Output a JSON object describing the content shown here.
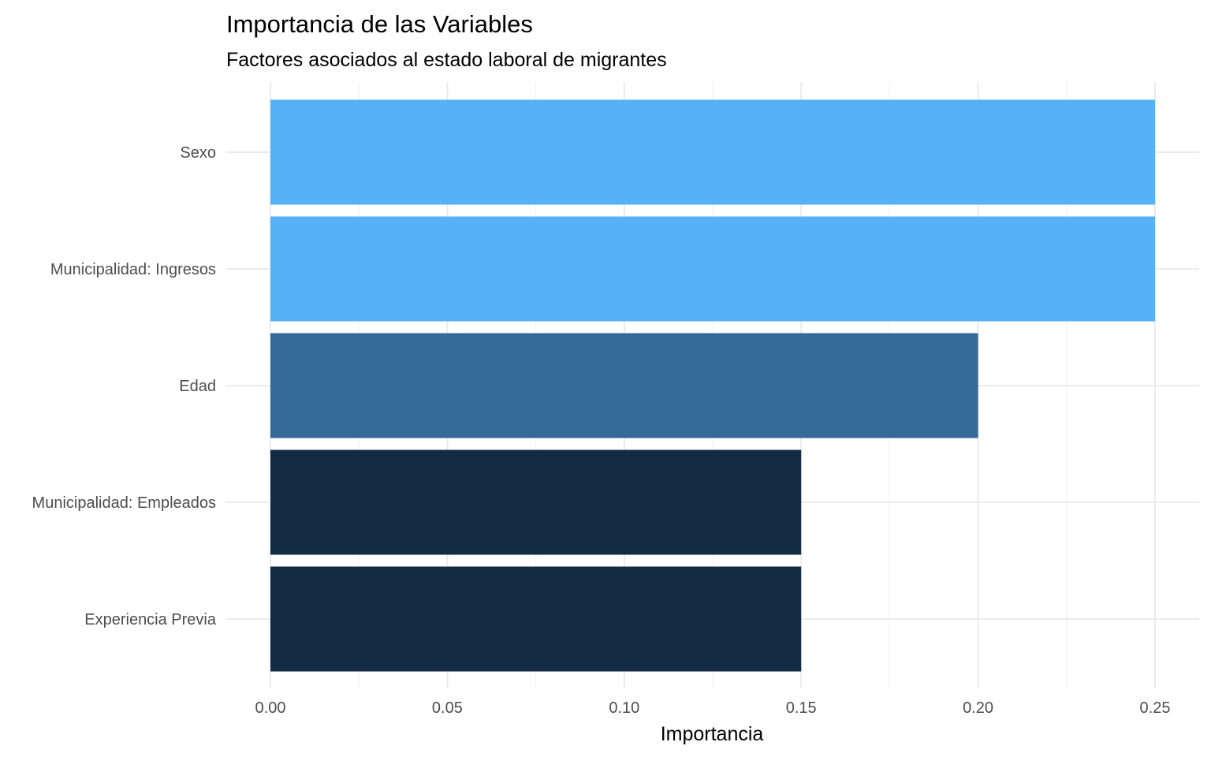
{
  "chart_data": {
    "type": "bar",
    "orientation": "horizontal",
    "title": "Importancia de las Variables",
    "subtitle": "Factores asociados al estado laboral de migrantes",
    "xlabel": "Importancia",
    "ylabel": "",
    "categories": [
      "Sexo",
      "Municipalidad: Ingresos",
      "Edad",
      "Municipalidad: Empleados",
      "Experiencia Previa"
    ],
    "values": [
      0.25,
      0.25,
      0.2,
      0.15,
      0.15
    ],
    "bar_colors": [
      "#56b1f7",
      "#56b1f7",
      "#336a98",
      "#132b43",
      "#132b43"
    ],
    "xlim": [
      0,
      0.25
    ],
    "x_ticks": [
      0.0,
      0.05,
      0.1,
      0.15,
      0.2,
      0.25
    ],
    "x_tick_labels": [
      "0.00",
      "0.05",
      "0.10",
      "0.15",
      "0.20",
      "0.25"
    ],
    "grid": true,
    "legend": "none"
  }
}
